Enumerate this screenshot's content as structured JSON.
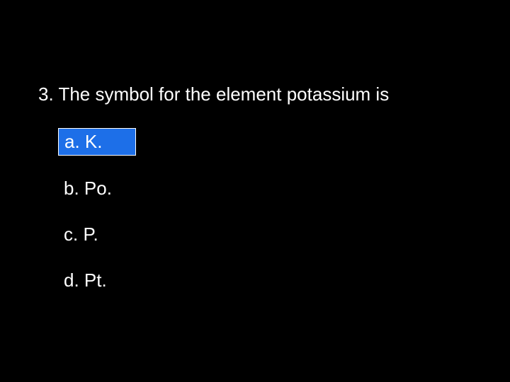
{
  "question": {
    "number": "3.",
    "text": "The symbol for the element potassium is"
  },
  "options": [
    {
      "letter": "a.",
      "text": "K.",
      "selected": true
    },
    {
      "letter": "b.",
      "text": "Po.",
      "selected": false
    },
    {
      "letter": "c.",
      "text": "P.",
      "selected": false
    },
    {
      "letter": "d.",
      "text": "Pt.",
      "selected": false
    }
  ],
  "colors": {
    "background": "#000000",
    "text": "#ffffff",
    "highlight": "#1d6fe8",
    "highlight_border": "#ffffff"
  },
  "typography": {
    "font_family": "Arial, Helvetica, sans-serif",
    "font_size": 26
  }
}
